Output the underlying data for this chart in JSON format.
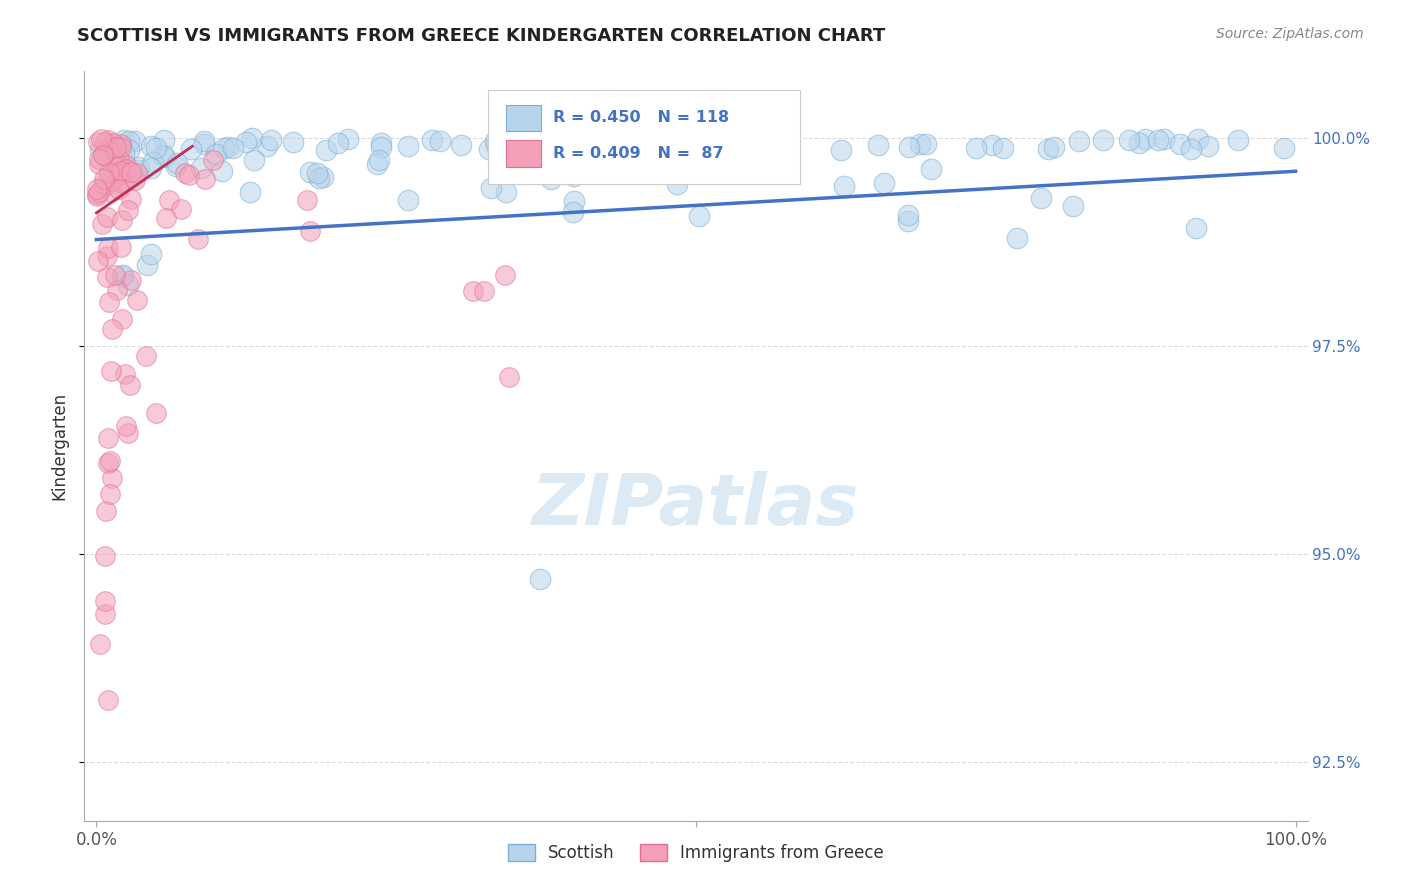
{
  "title": "SCOTTISH VS IMMIGRANTS FROM GREECE KINDERGARTEN CORRELATION CHART",
  "source": "Source: ZipAtlas.com",
  "ylabel": "Kindergarten",
  "ytick_values": [
    0.925,
    0.95,
    0.975,
    1.0
  ],
  "ytick_labels": [
    "92.5%",
    "95.0%",
    "97.5%",
    "100.0%"
  ],
  "xlim": [
    0.0,
    1.0
  ],
  "ylim": [
    0.918,
    1.008
  ],
  "blue_color": "#b8d4ec",
  "blue_edge": "#7baed4",
  "pink_color": "#f4a0b8",
  "pink_edge": "#e07090",
  "trend_blue_color": "#4472c4",
  "trend_pink_color": "#c0305a",
  "watermark_text": "ZIPatlas",
  "watermark_color": "#d8e8f4",
  "title_fontsize": 13,
  "source_fontsize": 10,
  "legend_bottom": [
    "Scottish",
    "Immigrants from Greece"
  ],
  "legend_r": [
    "R = 0.450   N = 118",
    "R = 0.409   N =  87"
  ],
  "legend_r_color": "#4472c4",
  "grid_color": "#cccccc",
  "spine_color": "#aaaaaa",
  "blue_trend_x0": 0.0,
  "blue_trend_y0": 0.9878,
  "blue_trend_x1": 1.0,
  "blue_trend_y1": 0.996,
  "pink_trend_x0": 0.0,
  "pink_trend_y0": 0.991,
  "pink_trend_x1": 0.08,
  "pink_trend_y1": 0.999
}
